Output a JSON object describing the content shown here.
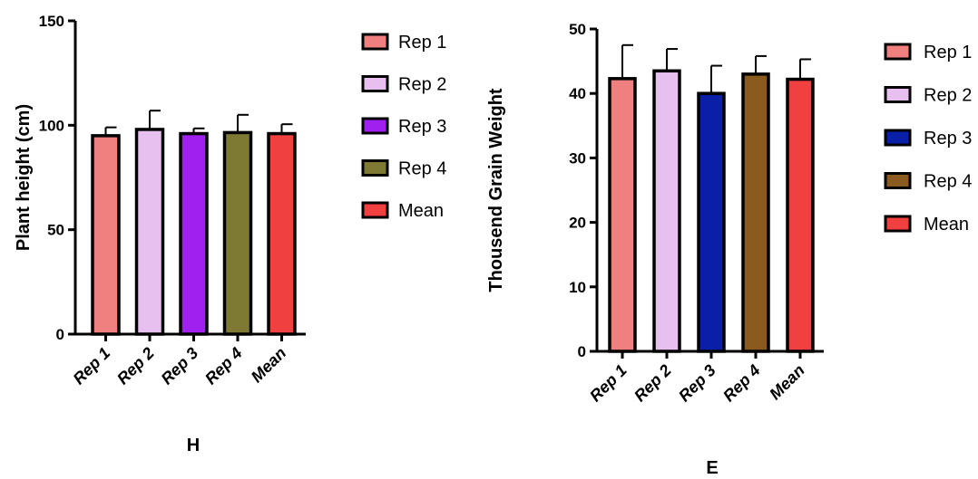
{
  "chart_data": [
    {
      "type": "bar",
      "panel_label": "H",
      "ylabel": "Plant height (cm)",
      "ylim": [
        0,
        150
      ],
      "yticks": [
        0,
        50,
        100,
        150
      ],
      "categories": [
        "Rep 1",
        "Rep 2",
        "Rep 3",
        "Rep 4",
        "Mean"
      ],
      "values": [
        95,
        98,
        96,
        96.5,
        96
      ],
      "errors": [
        4,
        9,
        2.5,
        8.5,
        4.5
      ],
      "colors": [
        "#F08080",
        "#E8C0F0",
        "#A020F0",
        "#7F7A33",
        "#F04040"
      ],
      "legend": [
        "Rep 1",
        "Rep 2",
        "Rep 3",
        "Rep 4",
        "Mean"
      ],
      "legend_position": "right"
    },
    {
      "type": "bar",
      "panel_label": "E",
      "ylabel": "Thousend Grain Weight",
      "ylim": [
        0,
        50
      ],
      "yticks": [
        0,
        10,
        20,
        30,
        40,
        50
      ],
      "categories": [
        "Rep 1",
        "Rep 2",
        "Rep 3",
        "Rep 4",
        "Mean"
      ],
      "values": [
        42.3,
        43.5,
        40,
        43,
        42.2
      ],
      "errors": [
        5.2,
        3.4,
        4.3,
        2.8,
        3.1
      ],
      "colors": [
        "#F08080",
        "#E8C0F0",
        "#0A1FA8",
        "#8B5A1E",
        "#F04040"
      ],
      "legend": [
        "Rep 1",
        "Rep 2",
        "Rep 3",
        "Rep 4",
        "Mean"
      ],
      "legend_position": "right"
    }
  ]
}
